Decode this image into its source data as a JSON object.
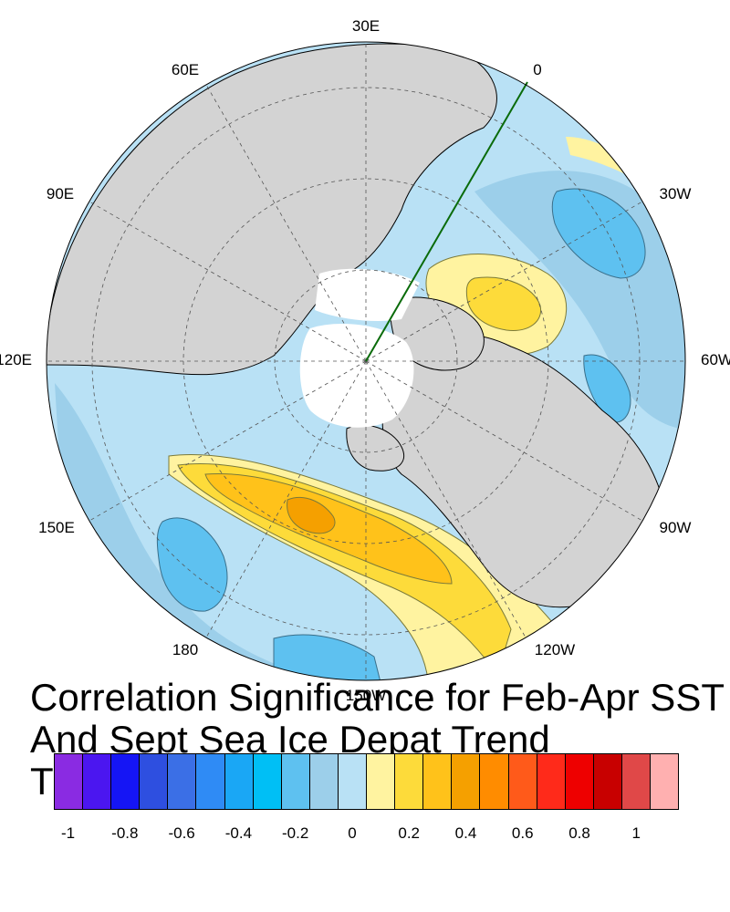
{
  "map": {
    "longitude_labels": [
      "30E",
      "0",
      "30W",
      "60W",
      "90W",
      "120W",
      "150W",
      "180",
      "150E",
      "120E",
      "90E",
      "60E"
    ],
    "colors": {
      "land": "#d3d3d3",
      "ice": "#ffffff",
      "ocean_base": "#b9e1f5",
      "neg_0_2": "#9ccfea",
      "neg_0_4": "#5ec1f0",
      "pos_0_2": "#fff3a0",
      "pos_0_4": "#fddb3a",
      "pos_0_6": "#ffc21a",
      "pos_0_8": "#f5a000",
      "transect_line": "#0a6b0a"
    }
  },
  "title": {
    "line1": "Correlation Significance for Feb-Apr SST",
    "line2": "And Sept Sea Ice Depat Trend",
    "line3": "T"
  },
  "colorbar": {
    "colors": [
      "#8a2be2",
      "#4b16f0",
      "#1515f5",
      "#2e4fe0",
      "#3b6fe6",
      "#2f8bf5",
      "#1aa7f5",
      "#00bff5",
      "#5ec1f0",
      "#9ccfea",
      "#b9e1f5",
      "#fff3a0",
      "#fddb3a",
      "#ffc21a",
      "#f5a000",
      "#ff8c00",
      "#ff5a1a",
      "#ff2a1a",
      "#ee0000",
      "#c80000",
      "#e04848",
      "#ffb0b0"
    ],
    "labels": [
      "-1",
      "-0.8",
      "-0.6",
      "-0.4",
      "-0.2",
      "0",
      "0.2",
      "0.4",
      "0.6",
      "0.8",
      "1"
    ]
  }
}
